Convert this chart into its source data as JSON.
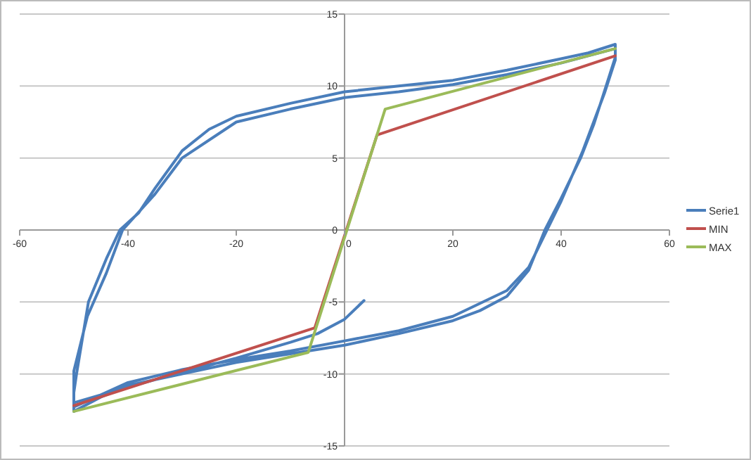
{
  "chart_data": {
    "type": "line",
    "xlim": [
      -60,
      60
    ],
    "ylim": [
      -15,
      15
    ],
    "xticks": [
      -60,
      -40,
      -20,
      0,
      20,
      40,
      60
    ],
    "yticks": [
      -15,
      -10,
      -5,
      0,
      5,
      10,
      15
    ],
    "grid": "y",
    "legend": "right",
    "marker": "none",
    "line_style": "solid",
    "series": [
      {
        "name": "Serie1",
        "color": "#4a7ebb",
        "x": [
          3.6,
          0,
          -5,
          -10,
          -20,
          -30,
          -40,
          -50,
          -50,
          -45,
          -40,
          -30,
          -20,
          -10,
          0,
          10,
          20,
          25,
          30,
          34,
          37,
          40,
          43.6,
          46,
          48.3,
          50,
          50,
          45,
          40,
          30,
          20,
          10,
          0,
          -10,
          -20,
          -25,
          -30,
          -35,
          -38,
          -41.5,
          -44,
          -47.3,
          -49.5,
          -50,
          -50,
          -40,
          -30,
          -20,
          -10,
          0,
          10,
          20,
          30,
          34,
          37,
          40,
          44,
          48,
          50,
          50,
          40,
          30,
          20,
          10,
          0,
          -10,
          -20,
          -30,
          -35,
          -41,
          -44,
          -47.5,
          -50,
          -50
        ],
        "values": [
          -4.9,
          -6.2,
          -7.2,
          -7.8,
          -8.9,
          -9.9,
          -10.9,
          -12,
          -12.6,
          -11.6,
          -10.8,
          -10,
          -9.2,
          -8.6,
          -8,
          -7.2,
          -6.3,
          -5.6,
          -4.6,
          -2.8,
          0,
          2.2,
          5,
          7.3,
          10,
          12,
          12.9,
          12.3,
          11.9,
          11.1,
          10.4,
          10,
          9.6,
          8.8,
          7.9,
          7,
          5.5,
          2.9,
          1.2,
          0,
          -2,
          -5,
          -10,
          -11.3,
          -12.3,
          -10.6,
          -9.7,
          -9,
          -8.4,
          -7.7,
          -7,
          -6,
          -4.2,
          -2.6,
          -0.3,
          2,
          5.5,
          9.5,
          11.8,
          12.6,
          11.6,
          10.8,
          10.1,
          9.6,
          9.2,
          8.4,
          7.5,
          5,
          2.5,
          0,
          -3,
          -6,
          -9.8,
          -12
        ]
      },
      {
        "name": "MIN",
        "color": "#c0504d",
        "x": [
          -50,
          -5.5,
          6,
          50
        ],
        "values": [
          -12.2,
          -6.8,
          6.6,
          12.1
        ]
      },
      {
        "name": "MAX",
        "color": "#9bbb59",
        "x": [
          -50,
          -6.7,
          7.5,
          50
        ],
        "values": [
          -12.6,
          -8.5,
          8.4,
          12.6
        ]
      }
    ]
  }
}
